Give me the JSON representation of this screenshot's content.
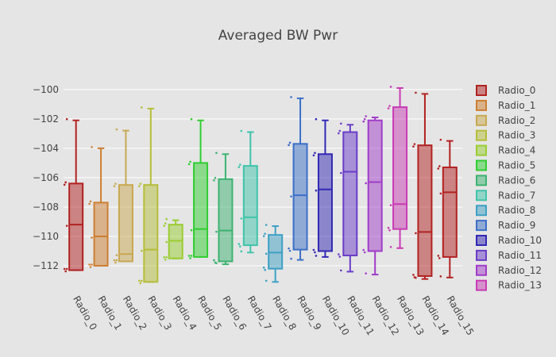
{
  "chart_data": {
    "type": "box",
    "title": "Averaged BW Pwr",
    "xlabel": "",
    "ylabel": "",
    "ylim": [
      -113.35,
      -99.2
    ],
    "yticks": [
      -100,
      -102,
      -104,
      -106,
      -108,
      -110,
      -112
    ],
    "ytick_labels": [
      "−100",
      "−102",
      "−104",
      "−106",
      "−108",
      "−110",
      "−112"
    ],
    "grid": true,
    "legend_placement": "right",
    "categories": [
      "Radio_0",
      "Radio_1",
      "Radio_2",
      "Radio_3",
      "Radio_4",
      "Radio_5",
      "Radio_6",
      "Radio_7",
      "Radio_8",
      "Radio_9",
      "Radio_10",
      "Radio_11",
      "Radio_12",
      "Radio_13",
      "Radio_14",
      "Radio_15"
    ],
    "legend": [
      "Radio_0",
      "Radio_1",
      "Radio_2",
      "Radio_3",
      "Radio_4",
      "Radio_5",
      "Radio_6",
      "Radio_7",
      "Radio_8",
      "Radio_9",
      "Radio_10",
      "Radio_11",
      "Radio_12",
      "Radio_13"
    ],
    "series": [
      {
        "name": "Radio_0",
        "color": "#b22222",
        "min": -112.3,
        "q1": -112.3,
        "median": -109.2,
        "q3": -106.4,
        "max": -102.1
      },
      {
        "name": "Radio_1",
        "color": "#cd7f32",
        "min": -112.0,
        "q1": -112.0,
        "median": -110.0,
        "q3": -107.7,
        "max": -104.0
      },
      {
        "name": "Radio_2",
        "color": "#c8a850",
        "min": -111.7,
        "q1": -111.7,
        "median": -111.2,
        "q3": -106.5,
        "max": -102.8
      },
      {
        "name": "Radio_3",
        "color": "#b5bd3a",
        "min": -113.1,
        "q1": -113.1,
        "median": -110.9,
        "q3": -106.5,
        "max": -101.3
      },
      {
        "name": "Radio_4",
        "color": "#9acd32",
        "min": -111.5,
        "q1": -111.5,
        "median": -110.3,
        "q3": -109.2,
        "max": -108.9
      },
      {
        "name": "Radio_5",
        "color": "#32cd32",
        "min": -111.4,
        "q1": -111.4,
        "median": -109.5,
        "q3": -105.0,
        "max": -102.1
      },
      {
        "name": "Radio_6",
        "color": "#3cb371",
        "min": -111.9,
        "q1": -111.7,
        "median": -109.6,
        "q3": -106.1,
        "max": -104.4
      },
      {
        "name": "Radio_7",
        "color": "#40c4aa",
        "min": -111.1,
        "q1": -110.6,
        "median": -108.7,
        "q3": -105.2,
        "max": -102.9
      },
      {
        "name": "Radio_8",
        "color": "#3ea0c4",
        "min": -113.1,
        "q1": -112.2,
        "median": -111.1,
        "q3": -109.9,
        "max": -109.3
      },
      {
        "name": "Radio_9",
        "color": "#3c6fc8",
        "min": -111.6,
        "q1": -110.9,
        "median": -107.2,
        "q3": -103.7,
        "max": -100.6
      },
      {
        "name": "Radio_10",
        "color": "#3228b4",
        "min": -111.4,
        "q1": -111.0,
        "median": -106.8,
        "q3": -104.4,
        "max": -102.1
      },
      {
        "name": "Radio_11",
        "color": "#6a3cc8",
        "min": -112.4,
        "q1": -111.3,
        "median": -105.6,
        "q3": -102.9,
        "max": -102.4
      },
      {
        "name": "Radio_12",
        "color": "#a03cc8",
        "min": -112.6,
        "q1": -111.0,
        "median": -106.3,
        "q3": -102.1,
        "max": -101.9
      },
      {
        "name": "Radio_13",
        "color": "#c83cb4",
        "min": -110.8,
        "q1": -109.5,
        "median": -107.8,
        "q3": -101.2,
        "max": -99.9
      },
      {
        "name": "Radio_14",
        "color": "#b22222",
        "min": -112.9,
        "q1": -112.7,
        "median": -109.7,
        "q3": -103.8,
        "max": -100.3
      },
      {
        "name": "Radio_15",
        "color": "#b22222",
        "min": -112.8,
        "q1": -111.4,
        "median": -107.0,
        "q3": -105.3,
        "max": -103.5
      }
    ]
  }
}
